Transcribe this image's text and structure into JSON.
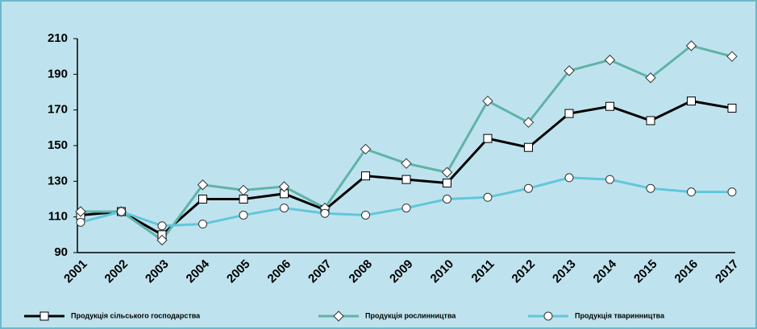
{
  "chart_data": {
    "type": "line",
    "categories": [
      "2001",
      "2002",
      "2003",
      "2004",
      "2005",
      "2006",
      "2007",
      "2008",
      "2009",
      "2010",
      "2011",
      "2012",
      "2013",
      "2014",
      "2015",
      "2016",
      "2017"
    ],
    "series": [
      {
        "name": "Продукція сільського господарства",
        "color": "#000000",
        "marker": "square",
        "values": [
          111,
          113,
          100,
          120,
          120,
          123,
          114,
          133,
          131,
          129,
          154,
          149,
          168,
          172,
          164,
          175,
          171
        ]
      },
      {
        "name": "Продукція рослинництва",
        "color": "#5fb3a8",
        "marker": "diamond",
        "values": [
          113,
          113,
          97,
          128,
          125,
          127,
          115,
          148,
          140,
          135,
          175,
          163,
          192,
          198,
          188,
          206,
          200
        ]
      },
      {
        "name": "Продукція тваринництва",
        "color": "#62c6dc",
        "marker": "circle",
        "values": [
          107,
          113,
          105,
          106,
          111,
          115,
          112,
          111,
          115,
          120,
          121,
          126,
          132,
          131,
          126,
          124,
          124
        ]
      }
    ],
    "ylim": [
      90,
      210
    ],
    "yticks": [
      90,
      110,
      130,
      150,
      170,
      190,
      210
    ],
    "grid": false,
    "legend": "bottom"
  }
}
